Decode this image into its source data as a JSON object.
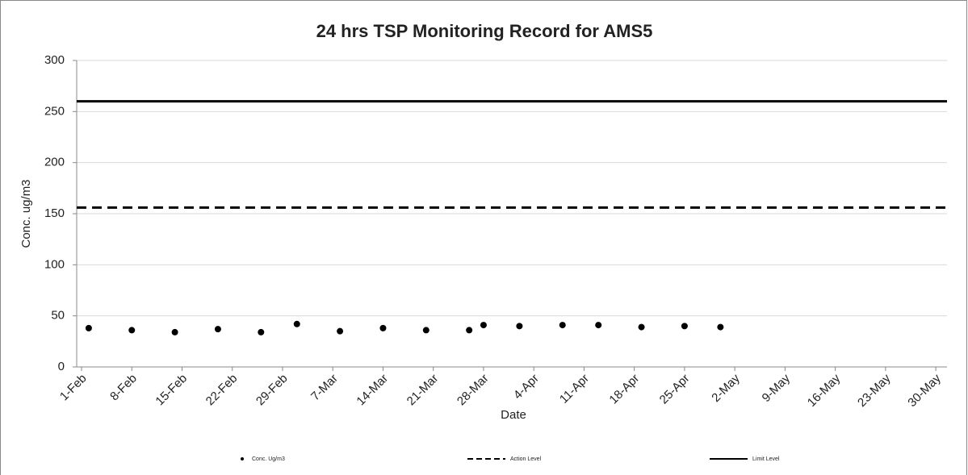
{
  "chart_data": {
    "type": "scatter",
    "title": "24 hrs TSP Monitoring Record for AMS5",
    "x_label": "Date",
    "y_label": "Conc. ug/m3",
    "x": [
      "2-Feb",
      "8-Feb",
      "14-Feb",
      "20-Feb",
      "26-Feb",
      "2-Mar",
      "8-Mar",
      "14-Mar",
      "20-Mar",
      "26-Mar",
      "28-Mar",
      "2-Apr",
      "8-Apr",
      "13-Apr",
      "19-Apr",
      "25-Apr",
      "30-Apr"
    ],
    "series": [
      {
        "name": "Conc. Ug/m3",
        "color": "#000000",
        "values": [
          38,
          36,
          34,
          37,
          34,
          42,
          35,
          38,
          36,
          36,
          41,
          40,
          41,
          41,
          39,
          40,
          39
        ]
      },
      {
        "name": "Action Level",
        "color": "#000000",
        "value": 156,
        "dashed": true
      },
      {
        "name": "Limit Level",
        "color": "#000000",
        "value": 260,
        "dashed": false
      }
    ],
    "xlim": [
      "1-Feb",
      "31-May"
    ],
    "xticks": [
      "1-Feb",
      "8-Feb",
      "15-Feb",
      "22-Feb",
      "29-Feb",
      "7-Mar",
      "14-Mar",
      "21-Mar",
      "28-Mar",
      "4-Apr",
      "11-Apr",
      "18-Apr",
      "25-Apr",
      "2-May",
      "9-May",
      "16-May",
      "23-May",
      "30-May"
    ],
    "ylim": [
      0,
      300
    ],
    "yticks": [
      0,
      50,
      100,
      150,
      200,
      250,
      300
    ],
    "grid": true,
    "legend": "bottom"
  }
}
